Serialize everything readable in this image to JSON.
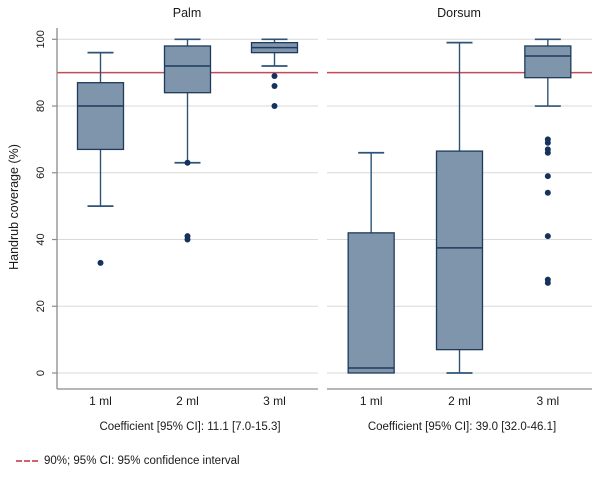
{
  "chart_data": {
    "type": "boxplot",
    "title": "",
    "ylabel": "Handrub coverage (%)",
    "ylim": [
      -5,
      103
    ],
    "yticks": [
      0,
      20,
      40,
      60,
      80,
      100
    ],
    "grid": true,
    "reference_line": {
      "value": 90
    },
    "legend_note": "90%; 95% CI: 95% confidence interval",
    "panels": [
      {
        "title": "Palm",
        "coefficient_label": "Coefficient [95% CI]: 11.1 [7.0-15.3]",
        "categories": [
          "1 ml",
          "2 ml",
          "3 ml"
        ],
        "boxes": [
          {
            "category": "1 ml",
            "whisker_low": 50,
            "q1": 67,
            "median": 80,
            "q3": 87,
            "whisker_high": 96,
            "outliers": [
              33
            ]
          },
          {
            "category": "2 ml",
            "whisker_low": 63,
            "q1": 84,
            "median": 92,
            "q3": 98,
            "whisker_high": 100,
            "outliers": [
              63,
              41,
              40
            ]
          },
          {
            "category": "3 ml",
            "whisker_low": 92,
            "q1": 96,
            "median": 97.5,
            "q3": 99,
            "whisker_high": 100,
            "outliers": [
              89,
              86,
              80
            ]
          }
        ]
      },
      {
        "title": "Dorsum",
        "coefficient_label": "Coefficient [95% CI]: 39.0 [32.0-46.1]",
        "categories": [
          "1 ml",
          "2 ml",
          "3 ml"
        ],
        "boxes": [
          {
            "category": "1 ml",
            "whisker_low": 0,
            "q1": 0,
            "median": 1.5,
            "q3": 42,
            "whisker_high": 66,
            "outliers": []
          },
          {
            "category": "2 ml",
            "whisker_low": 0,
            "q1": 7,
            "median": 37.5,
            "q3": 66.5,
            "whisker_high": 99,
            "outliers": []
          },
          {
            "category": "3 ml",
            "whisker_low": 80,
            "q1": 88.5,
            "median": 95,
            "q3": 98,
            "whisker_high": 100,
            "outliers": [
              70,
              69,
              67,
              66,
              59,
              54,
              41,
              28,
              27
            ]
          }
        ]
      }
    ],
    "colors": {
      "box_fill": "#7e95ac",
      "box_stroke": "#1f3a5c",
      "whisker": "#2e5377",
      "point": "#15325c",
      "reference": "#c24a5a",
      "gridline": "#d9d9d9",
      "axis": "#8c8c8c",
      "text": "#1a1a1a",
      "legend_dash": "#d4626e"
    }
  }
}
